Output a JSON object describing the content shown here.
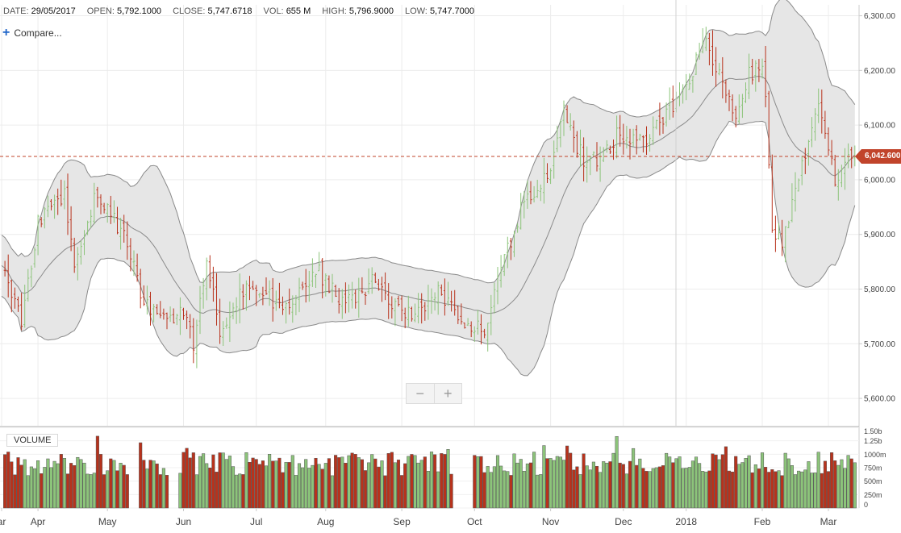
{
  "infobar": {
    "date_label": "DATE:",
    "date": "29/05/2017",
    "open_label": "OPEN:",
    "open": "5,792.1000",
    "close_label": "CLOSE:",
    "close": "5,747.6718",
    "vol_label": "VOL:",
    "vol": "655 M",
    "high_label": "HIGH:",
    "high": "5,796.9000",
    "low_label": "LOW:",
    "low": "5,747.7000"
  },
  "compare_label": "Compare...",
  "zoom": {
    "minus": "−",
    "plus": "+"
  },
  "volume_label": "VOLUME",
  "last_price_tag": "6,042.600",
  "colors": {
    "up": "#8cc47a",
    "down": "#b8321c",
    "band_fill": "#e6e6e6",
    "band_line": "#888888",
    "last_price": "#c1442b"
  },
  "chart_data": {
    "type": "ohlc",
    "price_axis": {
      "range": [
        5550,
        6320
      ],
      "ticks": [
        5600,
        5700,
        5800,
        5900,
        6000,
        6100,
        6200,
        6300
      ],
      "tick_labels": [
        "5,600.00",
        "5,700.00",
        "5,800.00",
        "5,900.00",
        "6,000.00",
        "6,100.00",
        "6,200.00",
        "6,300.00"
      ]
    },
    "volume_axis": {
      "range": [
        0,
        1500
      ],
      "ticks": [
        0,
        250,
        500,
        750,
        1000,
        1250,
        1500
      ],
      "tick_labels": [
        "0",
        "250m",
        "500m",
        "750m",
        "1000m",
        "1.25b",
        "1.50b"
      ]
    },
    "months": [
      {
        "label": "ar",
        "day": 0
      },
      {
        "label": "Apr",
        "day": 11
      },
      {
        "label": "May",
        "day": 32
      },
      {
        "label": "Jun",
        "day": 55
      },
      {
        "label": "Jul",
        "day": 77
      },
      {
        "label": "Aug",
        "day": 98
      },
      {
        "label": "Sep",
        "day": 121
      },
      {
        "label": "Oct",
        "day": 143
      },
      {
        "label": "Nov",
        "day": 166
      },
      {
        "label": "Dec",
        "day": 188
      },
      {
        "label": "2018",
        "day": 207
      },
      {
        "label": "Feb",
        "day": 230
      },
      {
        "label": "Mar",
        "day": 250
      }
    ],
    "last_price": 6042.6,
    "n_days": 258,
    "close_keypoints": [
      [
        0,
        5840
      ],
      [
        6,
        5735
      ],
      [
        11,
        5920
      ],
      [
        19,
        5980
      ],
      [
        22,
        5840
      ],
      [
        29,
        5980
      ],
      [
        38,
        5880
      ],
      [
        43,
        5770
      ],
      [
        48,
        5740
      ],
      [
        55,
        5760
      ],
      [
        58,
        5700
      ],
      [
        62,
        5850
      ],
      [
        66,
        5730
      ],
      [
        75,
        5810
      ],
      [
        86,
        5760
      ],
      [
        95,
        5840
      ],
      [
        104,
        5770
      ],
      [
        113,
        5820
      ],
      [
        120,
        5760
      ],
      [
        126,
        5760
      ],
      [
        132,
        5790
      ],
      [
        137,
        5760
      ],
      [
        141,
        5730
      ],
      [
        147,
        5730
      ],
      [
        151,
        5840
      ],
      [
        158,
        5960
      ],
      [
        166,
        6010
      ],
      [
        170,
        6120
      ],
      [
        177,
        6020
      ],
      [
        186,
        6080
      ],
      [
        195,
        6070
      ],
      [
        203,
        6140
      ],
      [
        208,
        6190
      ],
      [
        213,
        6250
      ],
      [
        219,
        6160
      ],
      [
        222,
        6110
      ],
      [
        226,
        6190
      ],
      [
        230,
        6220
      ],
      [
        231,
        6140
      ],
      [
        233,
        5900
      ],
      [
        236,
        5890
      ],
      [
        242,
        6030
      ],
      [
        247,
        6150
      ],
      [
        249,
        6100
      ],
      [
        252,
        6000
      ],
      [
        256,
        6060
      ],
      [
        258,
        6042
      ]
    ],
    "bollinger_period": 20,
    "bollinger_std": 2,
    "volume_gaps": [
      [
        39,
        41
      ],
      [
        51,
        53
      ],
      [
        137,
        139
      ],
      [
        140,
        142
      ]
    ]
  }
}
